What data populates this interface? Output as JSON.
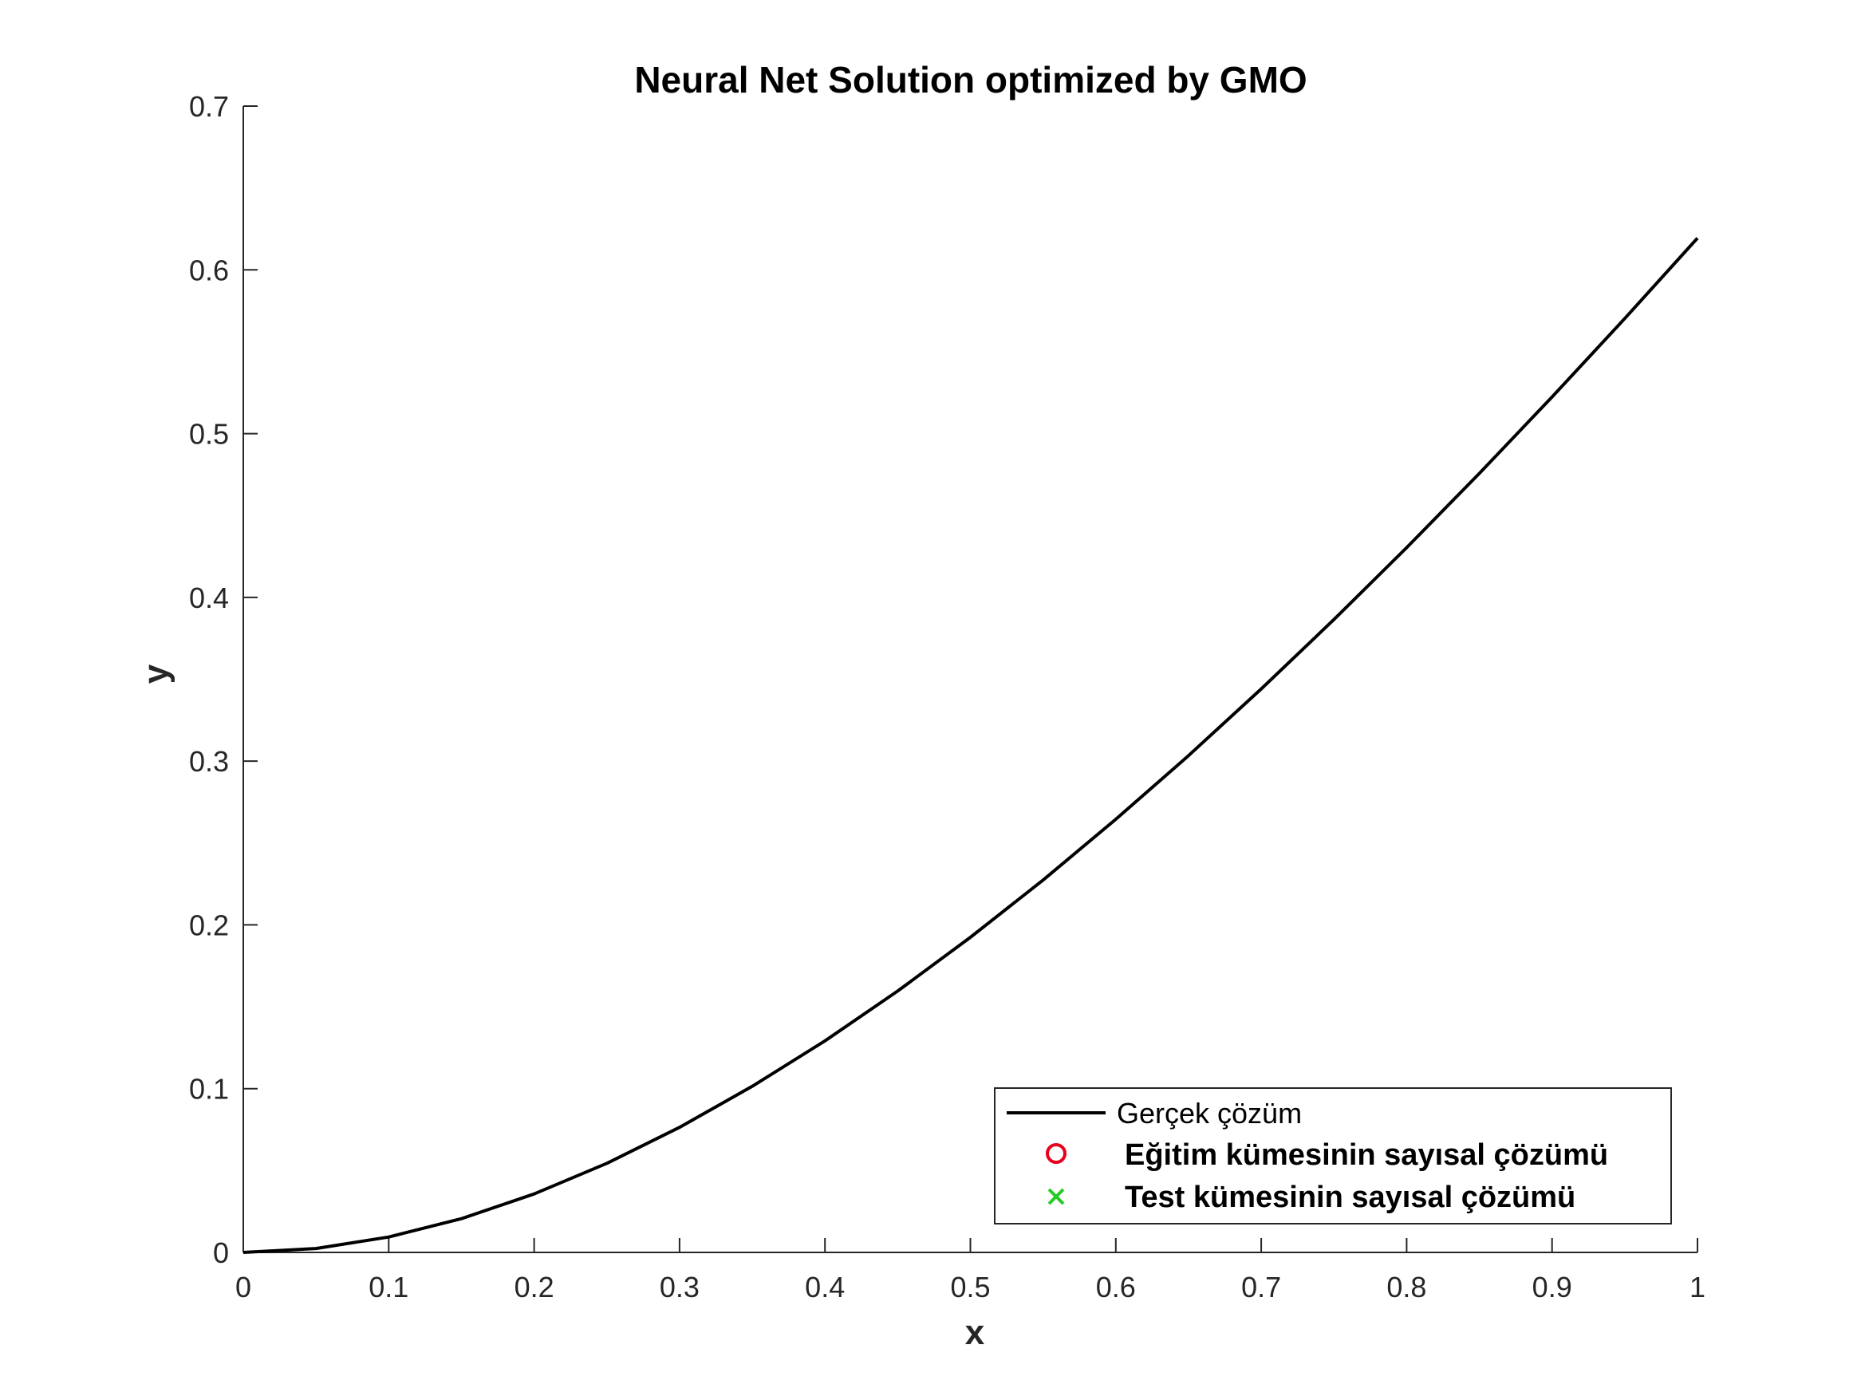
{
  "chart_data": {
    "type": "line",
    "title": "Neural Net Solution optimized by GMO",
    "xlabel": "x",
    "ylabel": "y",
    "xlim": [
      0,
      1
    ],
    "ylim": [
      0,
      0.7
    ],
    "xticks": [
      0,
      0.1,
      0.2,
      0.3,
      0.4,
      0.5,
      0.6,
      0.7,
      0.8,
      0.9,
      1
    ],
    "yticks": [
      0,
      0.1,
      0.2,
      0.3,
      0.4,
      0.5,
      0.6,
      0.7
    ],
    "xtick_labels": [
      "0",
      "0.1",
      "0.2",
      "0.3",
      "0.4",
      "0.5",
      "0.6",
      "0.7",
      "0.8",
      "0.9",
      "1"
    ],
    "ytick_labels": [
      "0",
      "0.1",
      "0.2",
      "0.3",
      "0.4",
      "0.5",
      "0.6",
      "0.7"
    ],
    "grid": false,
    "legend_position": "bottom-right",
    "series": [
      {
        "name": "Gerçek çözüm",
        "style": "line",
        "color": "#000000",
        "x": [
          0,
          0.05,
          0.1,
          0.15,
          0.2,
          0.25,
          0.3,
          0.35,
          0.4,
          0.45,
          0.5,
          0.55,
          0.6,
          0.65,
          0.7,
          0.75,
          0.8,
          0.85,
          0.9,
          0.95,
          1.0
        ],
        "y": [
          0,
          0.0024,
          0.0094,
          0.0206,
          0.0357,
          0.0544,
          0.0764,
          0.1014,
          0.1292,
          0.1596,
          0.1924,
          0.2274,
          0.2645,
          0.3034,
          0.3441,
          0.3865,
          0.4304,
          0.4757,
          0.5224,
          0.5703,
          0.6194
        ]
      },
      {
        "name": "Eğitim kümesinin sayısal çözümü",
        "style": "marker-circle",
        "color": "#e8001c",
        "x": [],
        "y": []
      },
      {
        "name": "Test kümesinin sayısal çözümü",
        "style": "marker-x",
        "color": "#22cc22",
        "x": [],
        "y": []
      }
    ]
  }
}
